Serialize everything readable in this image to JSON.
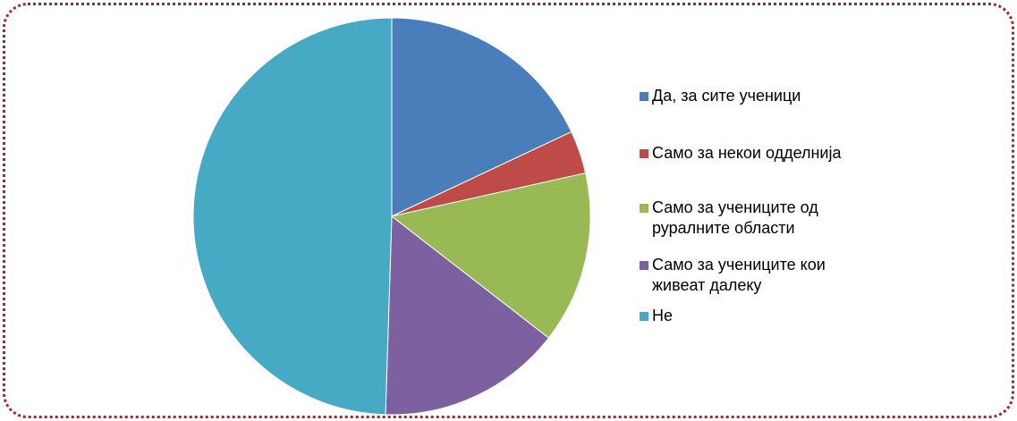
{
  "chart_data": {
    "type": "pie",
    "categories": [
      "Да, за сите ученици",
      "Само за некои одделнија",
      "Само за учениците од руралните области",
      "Само за учениците кои живеат далеку",
      "Не"
    ],
    "values": [
      18,
      3.5,
      14,
      15,
      49.5
    ],
    "colors": [
      "#4a7ebb",
      "#be4b48",
      "#98b954",
      "#7d60a0",
      "#46aac5"
    ],
    "legend": "right"
  }
}
